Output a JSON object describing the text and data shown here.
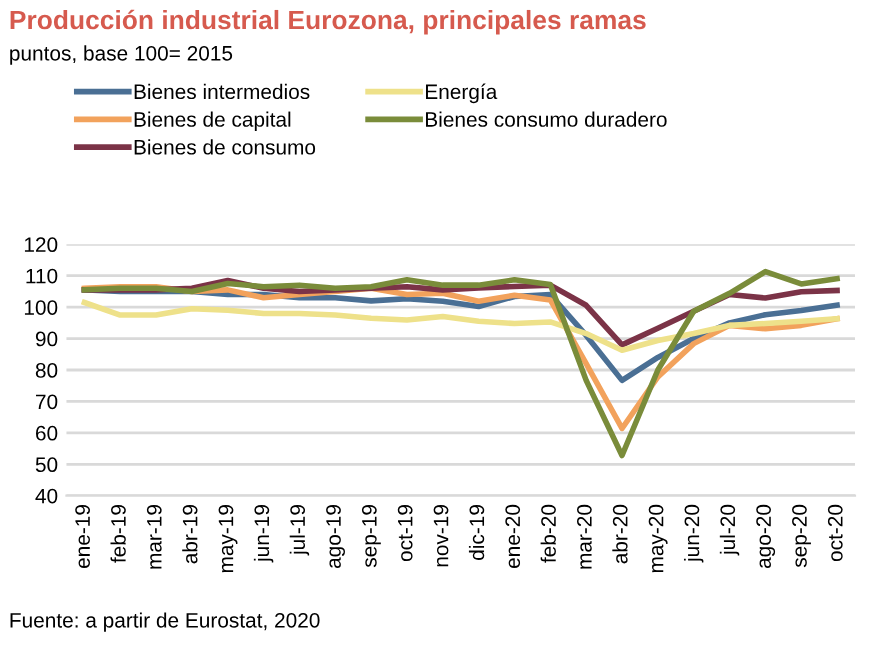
{
  "chart_data": {
    "type": "line",
    "title": "Producción industrial Eurozona, principales ramas",
    "subtitle": "puntos, base 100= 2015",
    "categories": [
      "ene-19",
      "feb-19",
      "mar-19",
      "abr-19",
      "may-19",
      "jun-19",
      "jul-19",
      "ago-19",
      "sep-19",
      "oct-19",
      "nov-19",
      "dic-19",
      "ene-20",
      "feb-20",
      "mar-20",
      "abr-20",
      "may-20",
      "jun-20",
      "jul-20",
      "ago-20",
      "sep-20",
      "oct-20"
    ],
    "series": [
      {
        "name": "Bienes intermedios",
        "color": "#4a6f94",
        "values": [
          105.5,
          105,
          105,
          105,
          104,
          104,
          103,
          103,
          102,
          102.7,
          101.9,
          100.2,
          103.4,
          104,
          91,
          76.7,
          84,
          90,
          95,
          97.6,
          98.9,
          100.6
        ]
      },
      {
        "name": "Bienes de capital",
        "color": "#f2a25c",
        "values": [
          106,
          106.5,
          106.5,
          105,
          105.5,
          103,
          104,
          105,
          106,
          104,
          104.4,
          101.9,
          103.8,
          102.3,
          82,
          61.4,
          77.8,
          88.4,
          94.2,
          93.1,
          94.2,
          96.3
        ]
      },
      {
        "name": "Bienes de consumo",
        "color": "#7b3347",
        "values": [
          105.5,
          105.5,
          105.5,
          106,
          108.5,
          106,
          105,
          105.5,
          106,
          106.5,
          105.5,
          106.1,
          106.6,
          107,
          100.6,
          88,
          93.3,
          98.7,
          104,
          102.9,
          104.9,
          105.3
        ]
      },
      {
        "name": "Energía",
        "color": "#eee18a",
        "values": [
          101.5,
          97.5,
          97.5,
          99.5,
          99,
          98,
          98,
          97.5,
          96.5,
          95.9,
          97,
          95.5,
          94.8,
          95.3,
          91.6,
          86.3,
          89.4,
          91.6,
          94.2,
          94.8,
          95.5,
          96.3
        ]
      },
      {
        "name": "Bienes consumo duradero",
        "color": "#7a8c3a",
        "values": [
          105.5,
          106,
          106,
          105,
          107.5,
          106.5,
          107,
          106,
          106.5,
          108.7,
          107,
          107,
          108.7,
          107.2,
          76.7,
          52.8,
          80,
          98.7,
          104.4,
          111.3,
          107.4,
          109.1
        ]
      }
    ],
    "ylim": [
      40,
      120
    ],
    "yticks": [
      40,
      50,
      60,
      70,
      80,
      90,
      100,
      110,
      120
    ],
    "grid": "y",
    "legend": "top",
    "marker": "none",
    "line_style": "solid",
    "annotations": [
      "Fuente: a partir de Eurostat, 2020"
    ]
  }
}
